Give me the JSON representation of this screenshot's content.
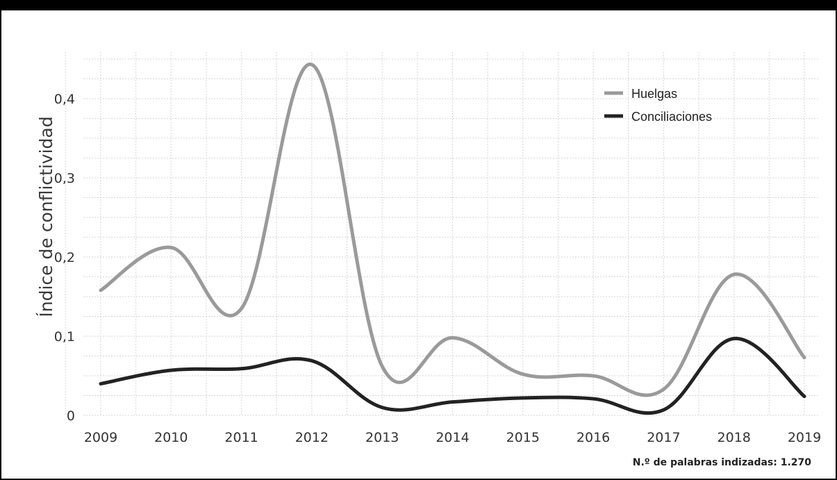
{
  "chart_data": {
    "type": "line",
    "xlabel": "",
    "ylabel": "Índice de conflictividad",
    "x": [
      2009,
      2010,
      2011,
      2012,
      2013,
      2014,
      2015,
      2016,
      2017,
      2018,
      2019
    ],
    "xtick_labels": [
      "2009",
      "2010",
      "2011",
      "2012",
      "2013",
      "2014",
      "2015",
      "2016",
      "2017",
      "2018",
      "2019"
    ],
    "ytick_values": [
      0,
      0.1,
      0.2,
      0.3,
      0.4
    ],
    "ytick_labels": [
      "0",
      "0,1",
      "0,2",
      "0,3",
      "0,4"
    ],
    "ylim": [
      0,
      0.45
    ],
    "grid": true,
    "legend_position": "top-right",
    "series": [
      {
        "name": "Huelgas",
        "color": "#9a9a9a",
        "values": [
          0.158,
          0.212,
          0.135,
          0.443,
          0.062,
          0.098,
          0.052,
          0.05,
          0.033,
          0.178,
          0.073
        ]
      },
      {
        "name": "Conciliaciones",
        "color": "#222222",
        "values": [
          0.04,
          0.057,
          0.059,
          0.069,
          0.01,
          0.017,
          0.022,
          0.021,
          0.007,
          0.097,
          0.024
        ]
      }
    ],
    "annotation": "N.º de palabras indizadas: 1.270"
  }
}
